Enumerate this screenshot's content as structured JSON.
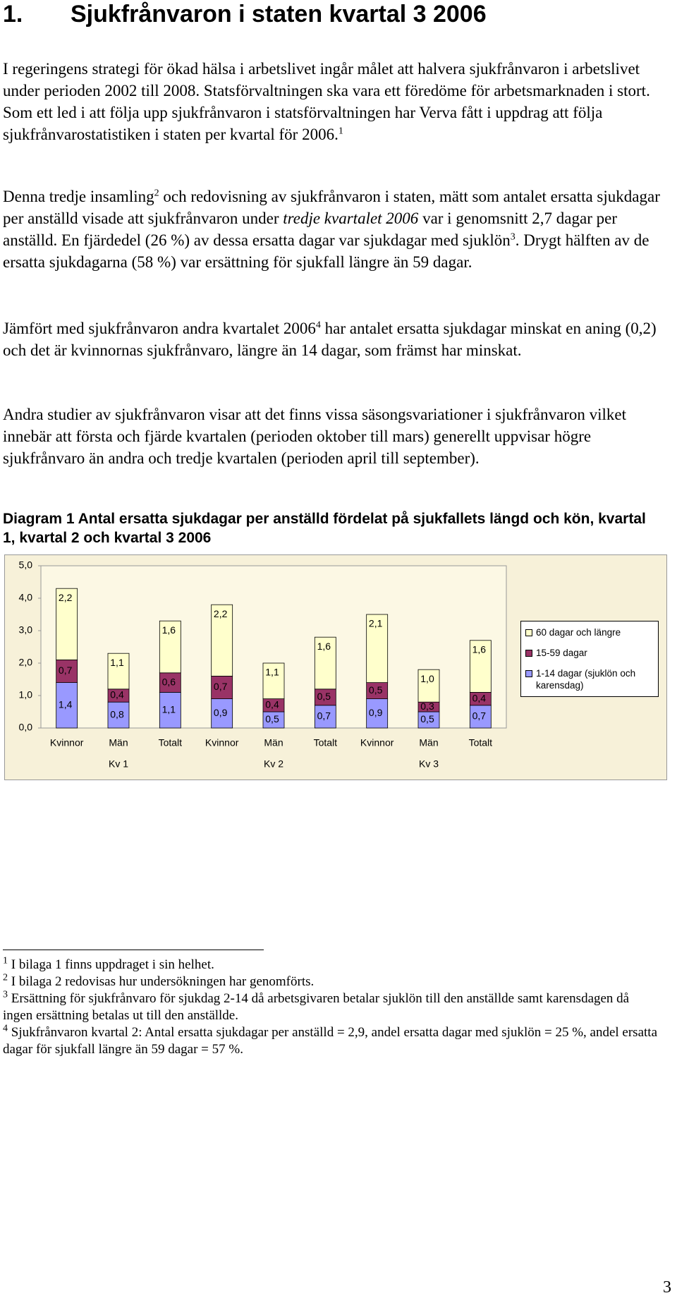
{
  "header": {
    "number": "1.",
    "title": "Sjukfrånvaron i staten kvartal 3 2006"
  },
  "paragraphs": [
    [
      {
        "text": "I regeringens strategi för ökad hälsa i arbetslivet ingår målet att halvera sjukfrånvaron i arbetslivet under perioden 2002 till 2008. Statsförvaltningen ska vara ett föredöme för arbetsmarknaden i stort. Som ett led i att följa upp sjukfrånvaron i statsförvaltningen har Verva fått i uppdrag att följa sjukfrånvarostatistiken i staten per kvartal för 2006."
      },
      {
        "sup": "1"
      }
    ],
    [
      {
        "text": "Denna tredje insamling"
      },
      {
        "sup": "2"
      },
      {
        "text": " och redovisning av sjukfrånvaron i staten, mätt som antalet ersatta sjukdagar per anställd visade att sjukfrånvaron under "
      },
      {
        "italic": "tredje kvartalet 2006"
      },
      {
        "text": " var i genomsnitt 2,7 dagar per anställd. En fjärdedel (26 %) av dessa ersatta dagar var sjukdagar med sjuklön"
      },
      {
        "sup": "3"
      },
      {
        "text": ". Drygt hälften av de ersatta sjukdagarna (58 %) var ersättning för sjukfall längre än 59 dagar."
      }
    ],
    [
      {
        "text": "Jämfört med sjukfrånvaron andra kvartalet 2006"
      },
      {
        "sup": "4"
      },
      {
        "text": " har antalet ersatta sjukdagar minskat en aning (0,2) och det är kvinnornas sjukfrånvaro, längre än 14 dagar, som främst har minskat."
      }
    ],
    [
      {
        "text": "Andra studier av sjukfrånvaron visar att det finns vissa säsongsvariationer i sjukfrånvaron vilket innebär att första och fjärde kvartalen (perioden oktober till mars) generellt uppvisar högre sjukfrånvaro än andra och tredje kvartalen (perioden april till september)."
      }
    ]
  ],
  "chart_data": {
    "type": "stacked_bar",
    "title": "Diagram 1 Antal ersatta sjukdagar per anställd fördelat på sjukfallets längd och kön, kvartal 1, kvartal 2 och kvartal 3 2006",
    "categories": [
      "Kvinnor",
      "Män",
      "Totalt",
      "Kvinnor",
      "Män",
      "Totalt",
      "Kvinnor",
      "Män",
      "Totalt"
    ],
    "groups": [
      "Kv 1",
      "Kv 2",
      "Kv 3"
    ],
    "series": [
      {
        "name": "1-14 dagar (sjuklön och karensdag)",
        "color": "#9999ff",
        "values": [
          1.4,
          0.8,
          1.1,
          0.9,
          0.5,
          0.7,
          0.9,
          0.5,
          0.7
        ],
        "value_labels": [
          "1,4",
          "0,8",
          "1,1",
          "0,9",
          "0,5",
          "0,7",
          "0,9",
          "0,5",
          "0,7"
        ]
      },
      {
        "name": "15-59 dagar",
        "color": "#993366",
        "values": [
          0.7,
          0.4,
          0.6,
          0.7,
          0.4,
          0.5,
          0.5,
          0.3,
          0.4
        ],
        "value_labels": [
          "0,7",
          "0,4",
          "0,6",
          "0,7",
          "0,4",
          "0,5",
          "0,5",
          "0,3",
          "0,4"
        ]
      },
      {
        "name": "60 dagar och längre",
        "color": "#ffffcc",
        "values": [
          2.2,
          1.1,
          1.6,
          2.2,
          1.1,
          1.6,
          2.1,
          1.0,
          1.6
        ],
        "value_labels": [
          "2,2",
          "1,1",
          "1,6",
          "2,2",
          "1,1",
          "1,6",
          "2,1",
          "1,0",
          "1,6"
        ]
      }
    ],
    "ylim": [
      0,
      5
    ],
    "yticks": [
      {
        "value": 0,
        "label": "0,0"
      },
      {
        "value": 1,
        "label": "1,0"
      },
      {
        "value": 2,
        "label": "2,0"
      },
      {
        "value": 3,
        "label": "3,0"
      },
      {
        "value": 4,
        "label": "4,0"
      },
      {
        "value": 5,
        "label": "5,0"
      }
    ],
    "grid": false,
    "legend": "right"
  },
  "footnotes": [
    {
      "marker": "1",
      "text": "I bilaga 1 finns uppdraget i sin helhet."
    },
    {
      "marker": "2",
      "text": "I bilaga 2 redovisas hur undersökningen har genomförts."
    },
    {
      "marker": "3",
      "text": "Ersättning för sjukfrånvaro för sjukdag 2-14 då arbetsgivaren betalar sjuklön till den anställde samt karensdagen då ingen ersättning betalas ut till den anställde."
    },
    {
      "marker": "4",
      "text": "Sjukfrånvaron kvartal 2: Antal ersatta sjukdagar per anställd = 2,9, andel ersatta dagar med sjuklön = 25 %, andel ersatta dagar för sjukfall längre än 59 dagar = 57 %."
    }
  ],
  "page_number": "3"
}
